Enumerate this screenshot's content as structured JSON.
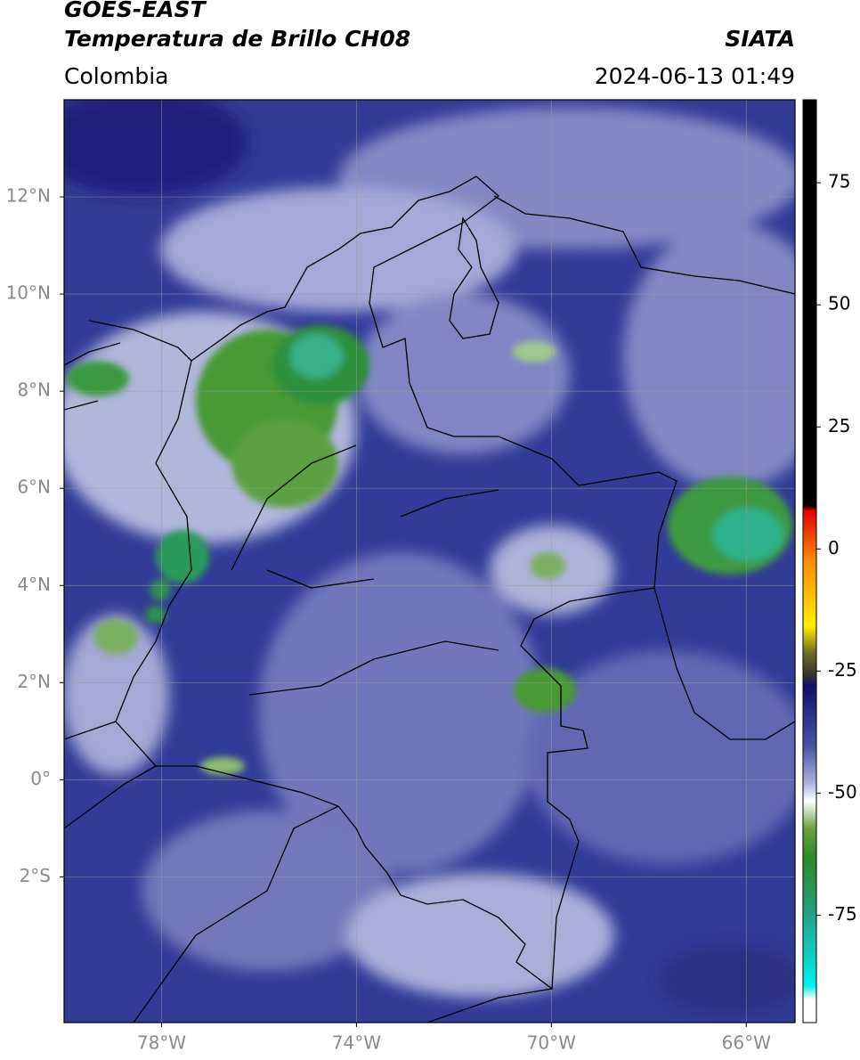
{
  "header": {
    "title": "GOES-EAST",
    "subtitle": "Temperatura de Brillo CH08",
    "agency": "SIATA",
    "region": "Colombia",
    "timestamp": "2024-06-13 01:49"
  },
  "map": {
    "xlim": [
      -80,
      -65
    ],
    "ylim": [
      -5,
      14
    ],
    "xticks": [
      {
        "value": -78,
        "label": "78°W"
      },
      {
        "value": -74,
        "label": "74°W"
      },
      {
        "value": -70,
        "label": "70°W"
      },
      {
        "value": -66,
        "label": "66°W"
      }
    ],
    "yticks": [
      {
        "value": 12,
        "label": "12°N"
      },
      {
        "value": 10,
        "label": "10°N"
      },
      {
        "value": 8,
        "label": "8°N"
      },
      {
        "value": 6,
        "label": "6°N"
      },
      {
        "value": 4,
        "label": "4°N"
      },
      {
        "value": 2,
        "label": "2°N"
      },
      {
        "value": 0,
        "label": "0°"
      },
      {
        "value": -2,
        "label": "2°S"
      }
    ],
    "grid": true
  },
  "colorbar": {
    "clim": [
      -97,
      92
    ],
    "ticks": [
      75,
      50,
      25,
      0,
      -25,
      -50,
      -75
    ]
  }
}
